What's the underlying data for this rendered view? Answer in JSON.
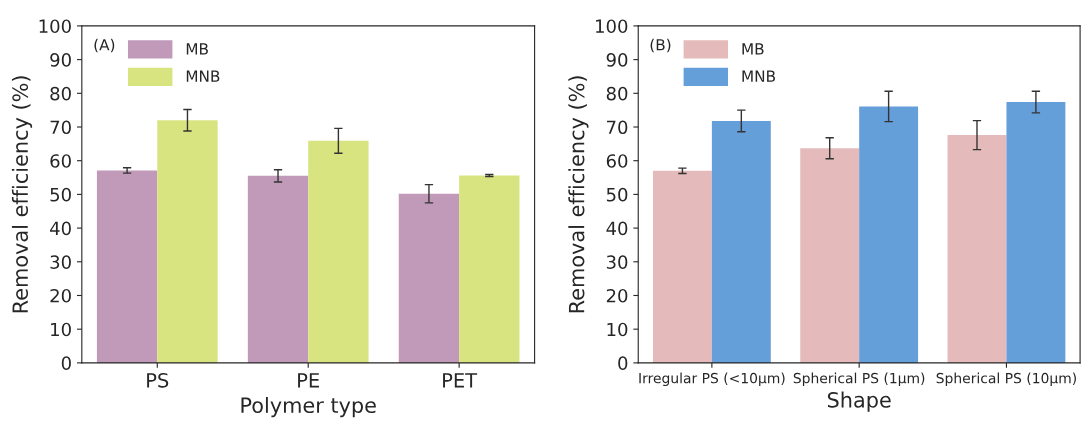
{
  "chart_data": [
    {
      "type": "bar",
      "xlabel": "Polymer type",
      "ylabel": "Removal efficiency (%)",
      "categories": [
        "PS",
        "PE",
        "PET"
      ],
      "ylim": [
        0,
        100
      ],
      "yticks": [
        0,
        10,
        20,
        30,
        40,
        50,
        60,
        70,
        80,
        90,
        100
      ],
      "grid": false,
      "legend": "top left",
      "annotations": [
        "(A)"
      ],
      "series": [
        {
          "name": "MB",
          "color": "#c09ab8",
          "values": [
            57.1,
            55.5,
            50.2
          ],
          "errors": [
            0.8,
            1.8,
            2.7
          ]
        },
        {
          "name": "MNB",
          "color": "#d8e480",
          "values": [
            72.0,
            65.9,
            55.6
          ],
          "errors": [
            3.2,
            3.7,
            0.3
          ]
        }
      ]
    },
    {
      "type": "bar",
      "xlabel": "Shape",
      "ylabel": "Removal efficiency (%)",
      "categories": [
        "Irregular PS (<10μm)",
        "Spherical PS (1μm)",
        "Spherical PS (10μm)"
      ],
      "ylim": [
        0,
        100
      ],
      "yticks": [
        0,
        10,
        20,
        30,
        40,
        50,
        60,
        70,
        80,
        90,
        100
      ],
      "grid": false,
      "legend": "top left",
      "annotations": [
        "(B)"
      ],
      "series": [
        {
          "name": "MB",
          "color": "#e4baba",
          "values": [
            57.0,
            63.7,
            67.6
          ],
          "errors": [
            0.8,
            3.1,
            4.3
          ]
        },
        {
          "name": "MNB",
          "color": "#649fda",
          "values": [
            71.8,
            76.1,
            77.4
          ],
          "errors": [
            3.2,
            4.5,
            3.2
          ]
        }
      ]
    }
  ]
}
